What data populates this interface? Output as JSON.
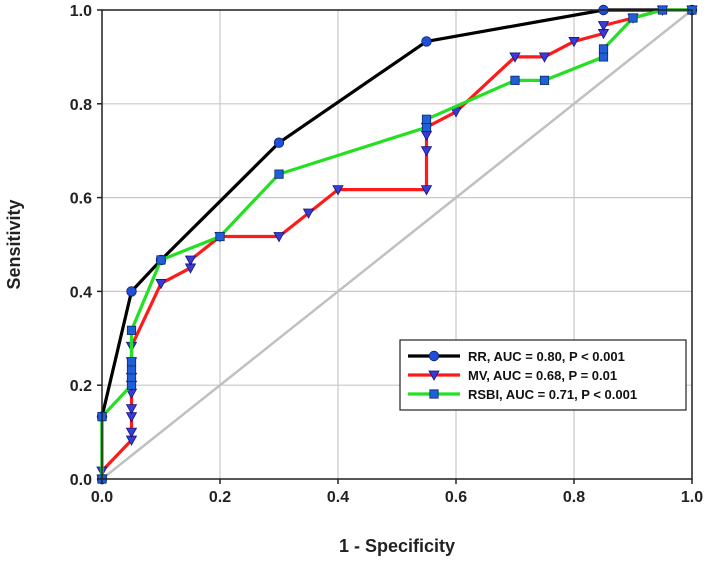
{
  "chart_data": {
    "type": "line",
    "title": "",
    "xlabel": "1 - Specificity",
    "ylabel": "Sensitivity",
    "xlim": [
      0,
      1
    ],
    "ylim": [
      0,
      1
    ],
    "x_ticks": [
      "0.0",
      "0.2",
      "0.4",
      "0.6",
      "0.8",
      "1.0"
    ],
    "y_ticks": [
      "0.0",
      "0.2",
      "0.4",
      "0.6",
      "0.8",
      "1.0"
    ],
    "grid": true,
    "legend_position": "bottom-right",
    "reference_line": {
      "name": "chance",
      "x": [
        0,
        1
      ],
      "y": [
        0,
        1
      ],
      "color": "#c0c0c0"
    },
    "series": [
      {
        "name": "RR",
        "label": "RR, AUC = 0.80, P < 0.001",
        "color": "#000000",
        "marker": "circle",
        "marker_color": "#1f4fd8",
        "x": [
          0,
          0,
          0.05,
          0.1,
          0.3,
          0.55,
          0.85,
          1.0
        ],
        "y": [
          0,
          0.133,
          0.4,
          0.467,
          0.717,
          0.933,
          1.0,
          1.0
        ]
      },
      {
        "name": "MV",
        "label": "MV, AUC = 0.68, P = 0.01",
        "color": "#ff1a1a",
        "marker": "triangle-down",
        "marker_color": "#3a3ad6",
        "x": [
          0,
          0,
          0.05,
          0.05,
          0.05,
          0.05,
          0.05,
          0.05,
          0.05,
          0.05,
          0.05,
          0.1,
          0.15,
          0.15,
          0.2,
          0.3,
          0.35,
          0.4,
          0.55,
          0.55,
          0.55,
          0.55,
          0.6,
          0.7,
          0.75,
          0.8,
          0.85,
          0.85,
          0.9,
          0.95,
          1.0
        ],
        "y": [
          0,
          0.017,
          0.083,
          0.1,
          0.133,
          0.15,
          0.183,
          0.2,
          0.217,
          0.25,
          0.283,
          0.417,
          0.45,
          0.467,
          0.517,
          0.517,
          0.567,
          0.617,
          0.617,
          0.7,
          0.733,
          0.75,
          0.783,
          0.9,
          0.9,
          0.933,
          0.95,
          0.967,
          0.983,
          1.0,
          1.0
        ]
      },
      {
        "name": "RSBI",
        "label": "RSBI, AUC = 0.71, P < 0.001",
        "color": "#22e022",
        "marker": "square",
        "marker_color": "#1f5fd8",
        "x": [
          0,
          0,
          0.05,
          0.05,
          0.05,
          0.05,
          0.05,
          0.1,
          0.2,
          0.3,
          0.55,
          0.55,
          0.7,
          0.75,
          0.85,
          0.85,
          0.9,
          0.95,
          1.0
        ],
        "y": [
          0,
          0.133,
          0.2,
          0.217,
          0.233,
          0.25,
          0.317,
          0.467,
          0.517,
          0.65,
          0.75,
          0.767,
          0.85,
          0.85,
          0.9,
          0.917,
          0.983,
          1.0,
          1.0
        ]
      }
    ]
  }
}
